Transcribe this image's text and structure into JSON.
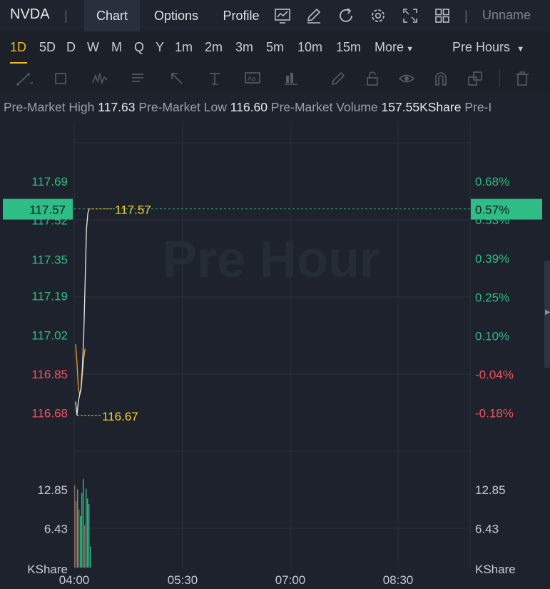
{
  "header": {
    "symbol": "NVDA",
    "separator": "|",
    "tabs": [
      "Chart",
      "Options",
      "Profile"
    ],
    "active_tab": "Chart",
    "icons": [
      "chart-trend-icon",
      "pencil-icon",
      "refresh-icon",
      "settings-icon",
      "fullscreen-icon",
      "layout-grid-icon"
    ],
    "user_name": "Unname"
  },
  "periods": [
    "1D",
    "5D",
    "D",
    "W",
    "M",
    "Q",
    "Y",
    "1m",
    "2m",
    "3m",
    "5m",
    "10m",
    "15m"
  ],
  "active_period": "1D",
  "more_label": "More",
  "session_label": "Pre Hours",
  "drawing_tools": [
    "trend-line-icon",
    "rectangle-icon",
    "pattern-icon",
    "text-note-icon",
    "arrow-icon",
    "measure-icon",
    "text-label-icon",
    "bar-pattern-icon",
    "pen-icon",
    "lock-icon",
    "eye-icon",
    "magnet-icon",
    "clone-icon",
    "trash-icon"
  ],
  "info": {
    "high_label": "Pre-Market High",
    "high_value": "117.63",
    "low_label": "Pre-Market Low",
    "low_value": "116.60",
    "volume_label": "Pre-Market Volume",
    "volume_value": "157.55KShare",
    "trailing": "Pre-I"
  },
  "watermark": "Pre Hour",
  "chart_data": {
    "type": "line",
    "price_axis": [
      {
        "label": "117.69",
        "value": 117.69,
        "color": "#2ebd85"
      },
      {
        "label": "117.52",
        "value": 117.52,
        "color": "#2ebd85"
      },
      {
        "label": "117.35",
        "value": 117.35,
        "color": "#2ebd85"
      },
      {
        "label": "117.19",
        "value": 117.19,
        "color": "#2ebd85"
      },
      {
        "label": "117.02",
        "value": 117.02,
        "color": "#2ebd85"
      },
      {
        "label": "116.85",
        "value": 116.85,
        "color": "#f0525f"
      },
      {
        "label": "116.68",
        "value": 116.68,
        "color": "#f0525f"
      }
    ],
    "percent_axis": [
      {
        "label": "0.68%",
        "value": 0.68,
        "color": "#2ebd85"
      },
      {
        "label": "0.53%",
        "value": 0.53,
        "color": "#2ebd85"
      },
      {
        "label": "0.39%",
        "value": 0.39,
        "color": "#2ebd85"
      },
      {
        "label": "0.25%",
        "value": 0.25,
        "color": "#2ebd85"
      },
      {
        "label": "0.10%",
        "value": 0.1,
        "color": "#2ebd85"
      },
      {
        "label": "-0.04%",
        "value": -0.04,
        "color": "#f0525f"
      },
      {
        "label": "-0.18%",
        "value": -0.18,
        "color": "#f0525f"
      }
    ],
    "current_price": {
      "label": "117.57",
      "value": 117.57,
      "percent_label": "0.57%"
    },
    "high_marker": {
      "label": "117.57",
      "value": 117.57
    },
    "low_marker": {
      "label": "116.67",
      "value": 116.67
    },
    "volume_axis": {
      "ticks": [
        {
          "label": "12.85",
          "value": 12.85
        },
        {
          "label": "6.43",
          "value": 6.43
        }
      ],
      "unit": "KShare"
    },
    "x_axis": [
      "04:00",
      "05:30",
      "07:00",
      "08:30"
    ],
    "price_series": {
      "color": "#e8e8e8",
      "points": [
        [
          0,
          116.73
        ],
        [
          1,
          116.67
        ],
        [
          2,
          116.73
        ],
        [
          3,
          116.76
        ],
        [
          4,
          116.79
        ],
        [
          5,
          116.88
        ],
        [
          6,
          117.02
        ],
        [
          7,
          117.25
        ],
        [
          8,
          117.48
        ],
        [
          9,
          117.55
        ],
        [
          10,
          117.57
        ]
      ]
    },
    "avg_series": {
      "color": "#f59c34",
      "points": [
        [
          0,
          116.98
        ],
        [
          1,
          116.9
        ],
        [
          2,
          116.79
        ],
        [
          3,
          116.76
        ],
        [
          4,
          116.78
        ],
        [
          5,
          116.85
        ],
        [
          6,
          116.92
        ],
        [
          7,
          116.96
        ]
      ]
    },
    "volume_bars": [
      {
        "v": 13.6,
        "c": "#8a6a5c"
      },
      {
        "v": 11.0,
        "c": "#8a6a5c"
      },
      {
        "v": 12.9,
        "c": "#2ebd85"
      },
      {
        "v": 9.6,
        "c": "#8a6a5c"
      },
      {
        "v": 8.5,
        "c": "#2ebd85"
      },
      {
        "v": 12.3,
        "c": "#2ebd85"
      },
      {
        "v": 14.6,
        "c": "#2ebd85"
      },
      {
        "v": 7.0,
        "c": "#8a6a5c"
      },
      {
        "v": 13.0,
        "c": "#2ebd85"
      },
      {
        "v": 11.4,
        "c": "#2ebd85"
      },
      {
        "v": 10.5,
        "c": "#2ebd85"
      },
      {
        "v": 3.5,
        "c": "#2ebd85"
      }
    ]
  }
}
